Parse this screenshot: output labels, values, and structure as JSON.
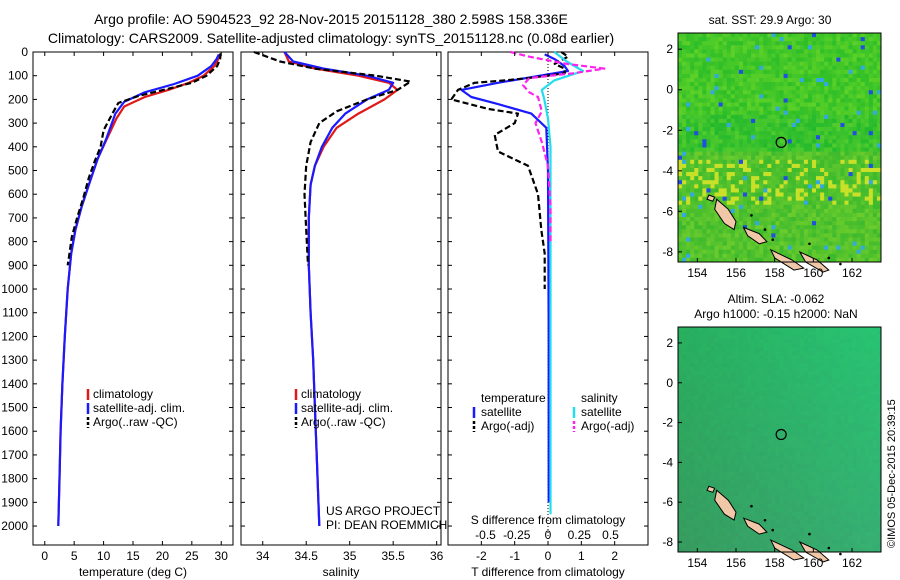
{
  "header": {
    "title_line1": "Argo profile: AO 5904523_92 28-Nov-2015 20151128_380 2.598S 158.336E",
    "title_line2": "Climatology: CARS2009. Satellite-adjusted climatology: synTS_20151128.nc (0.08d earlier)"
  },
  "colors": {
    "climatology": "#e01818",
    "satellite": "#1a1aff",
    "argo": "#000000",
    "sal_satellite": "#22ddee",
    "sal_argo": "#ff22ee"
  },
  "depth_axis": {
    "ticks": [
      0,
      100,
      200,
      300,
      400,
      500,
      600,
      700,
      800,
      900,
      1000,
      1100,
      1200,
      1300,
      1400,
      1500,
      1600,
      1700,
      1800,
      1900,
      2000
    ],
    "range": [
      0,
      2000
    ]
  },
  "chart_data": [
    {
      "type": "line",
      "name": "temperature-profile",
      "xlabel": "temperature (deg C)",
      "ylabel": "",
      "xlim": [
        -2,
        32
      ],
      "ylim": [
        0,
        2080
      ],
      "xticks": [
        0,
        5,
        10,
        15,
        20,
        25,
        30
      ],
      "legend": [
        "climatology",
        "satellite-adj. clim.",
        "Argo(..raw -QC)"
      ],
      "series": [
        {
          "name": "climatology",
          "color_key": "climatology",
          "dash": "",
          "points": [
            [
              29.8,
              10
            ],
            [
              29.5,
              30
            ],
            [
              28.8,
              60
            ],
            [
              27.0,
              100
            ],
            [
              24.5,
              130
            ],
            [
              21.0,
              160
            ],
            [
              17.0,
              190
            ],
            [
              13.5,
              230
            ],
            [
              12.2,
              280
            ],
            [
              10.5,
              370
            ],
            [
              9.0,
              450
            ],
            [
              7.5,
              560
            ],
            [
              6.3,
              650
            ],
            [
              5.2,
              750
            ],
            [
              4.5,
              850
            ],
            [
              3.9,
              1000
            ],
            [
              3.4,
              1200
            ],
            [
              3.0,
              1400
            ],
            [
              2.7,
              1600
            ],
            [
              2.5,
              1800
            ],
            [
              2.3,
              2000
            ]
          ]
        },
        {
          "name": "satellite-adj. clim.",
          "color_key": "satellite",
          "dash": "",
          "points": [
            [
              29.6,
              10
            ],
            [
              29.2,
              30
            ],
            [
              28.3,
              60
            ],
            [
              26.0,
              100
            ],
            [
              22.0,
              135
            ],
            [
              17.0,
              170
            ],
            [
              13.5,
              210
            ],
            [
              12.0,
              260
            ],
            [
              10.4,
              370
            ],
            [
              9.0,
              450
            ],
            [
              7.5,
              560
            ],
            [
              6.3,
              650
            ],
            [
              5.2,
              750
            ],
            [
              4.5,
              850
            ],
            [
              3.9,
              1000
            ],
            [
              3.4,
              1200
            ],
            [
              3.0,
              1400
            ],
            [
              2.7,
              1600
            ],
            [
              2.5,
              1800
            ],
            [
              2.3,
              2000
            ]
          ]
        },
        {
          "name": "Argo(..raw -QC)",
          "color_key": "argo",
          "dash": "6,3",
          "points": [
            [
              29.9,
              5
            ],
            [
              29.8,
              30
            ],
            [
              29.3,
              60
            ],
            [
              27.5,
              100
            ],
            [
              25.0,
              130
            ],
            [
              21.0,
              155
            ],
            [
              16.0,
              185
            ],
            [
              12.5,
              215
            ],
            [
              11.5,
              260
            ],
            [
              10.0,
              330
            ],
            [
              9.5,
              400
            ],
            [
              8.5,
              460
            ],
            [
              7.5,
              530
            ],
            [
              6.5,
              620
            ],
            [
              5.5,
              700
            ],
            [
              4.6,
              780
            ],
            [
              4.2,
              850
            ],
            [
              3.9,
              900
            ]
          ]
        }
      ]
    },
    {
      "type": "line",
      "name": "salinity-profile",
      "xlabel": "salinity",
      "ylabel": "",
      "xlim": [
        33.75,
        36.05
      ],
      "ylim": [
        0,
        2080
      ],
      "xticks": [
        34,
        34.5,
        35,
        35.5,
        36
      ],
      "legend": [
        "climatology",
        "satellite-adj. clim.",
        "Argo(..raw -QC)"
      ],
      "annotations": [
        "US ARGO PROJECT",
        "PI: DEAN ROEMMICH"
      ],
      "series": [
        {
          "name": "climatology",
          "color_key": "climatology",
          "dash": "",
          "points": [
            [
              34.25,
              0
            ],
            [
              34.3,
              40
            ],
            [
              34.6,
              70
            ],
            [
              35.1,
              100
            ],
            [
              35.45,
              130
            ],
            [
              35.55,
              160
            ],
            [
              35.4,
              200
            ],
            [
              35.1,
              260
            ],
            [
              34.85,
              320
            ],
            [
              34.7,
              400
            ],
            [
              34.6,
              480
            ],
            [
              34.55,
              560
            ],
            [
              34.53,
              700
            ],
            [
              34.53,
              900
            ],
            [
              34.55,
              1100
            ],
            [
              34.58,
              1300
            ],
            [
              34.6,
              1500
            ],
            [
              34.62,
              1700
            ],
            [
              34.65,
              2000
            ]
          ]
        },
        {
          "name": "satellite-adj. clim.",
          "color_key": "satellite",
          "dash": "",
          "points": [
            [
              34.25,
              0
            ],
            [
              34.35,
              40
            ],
            [
              34.7,
              70
            ],
            [
              35.2,
              100
            ],
            [
              35.5,
              130
            ],
            [
              35.45,
              160
            ],
            [
              35.2,
              200
            ],
            [
              34.95,
              260
            ],
            [
              34.8,
              320
            ],
            [
              34.68,
              400
            ],
            [
              34.6,
              480
            ],
            [
              34.55,
              560
            ],
            [
              34.53,
              700
            ],
            [
              34.53,
              900
            ],
            [
              34.55,
              1100
            ],
            [
              34.58,
              1300
            ],
            [
              34.6,
              1500
            ],
            [
              34.62,
              1700
            ],
            [
              34.65,
              2000
            ]
          ]
        },
        {
          "name": "Argo(..raw -QC)",
          "color_key": "argo",
          "dash": "6,3",
          "points": [
            [
              33.9,
              0
            ],
            [
              34.2,
              40
            ],
            [
              34.6,
              70
            ],
            [
              35.3,
              100
            ],
            [
              35.7,
              125
            ],
            [
              35.55,
              160
            ],
            [
              35.2,
              200
            ],
            [
              34.85,
              250
            ],
            [
              34.65,
              300
            ],
            [
              34.55,
              380
            ],
            [
              34.5,
              480
            ],
            [
              34.48,
              600
            ],
            [
              34.5,
              750
            ],
            [
              34.52,
              900
            ]
          ]
        }
      ]
    },
    {
      "type": "line",
      "name": "difference-profile",
      "xlabel": "T difference from climatology",
      "x2label": "S difference from climatology",
      "xlim": [
        -3,
        3
      ],
      "x2lim": [
        -0.8,
        0.8
      ],
      "ylim": [
        0,
        2080
      ],
      "xticks": [
        -2,
        -1,
        0,
        1,
        2
      ],
      "x2ticks": [
        -0.5,
        -0.25,
        0,
        0.25,
        0.5
      ],
      "x2ticklabels": [
        "-0.5",
        "-0.25",
        "0",
        "0.25",
        "0.5"
      ],
      "legend_temperature": {
        "title": "temperature",
        "items": [
          "satellite",
          "Argo(-adj)"
        ]
      },
      "legend_salinity": {
        "title": "salinity",
        "items": [
          "satellite",
          "Argo(-adj)"
        ]
      },
      "series": [
        {
          "name": "T satellite",
          "axis": "T",
          "color_key": "satellite",
          "dash": "",
          "points": [
            [
              -0.1,
              10
            ],
            [
              0.2,
              30
            ],
            [
              0.5,
              60
            ],
            [
              0.6,
              80
            ],
            [
              -1.5,
              130
            ],
            [
              -2.6,
              160
            ],
            [
              -2.3,
              190
            ],
            [
              -1.5,
              220
            ],
            [
              -0.5,
              260
            ],
            [
              -0.05,
              320
            ],
            [
              0,
              500
            ],
            [
              0.01,
              800
            ],
            [
              0.02,
              1200
            ],
            [
              0.02,
              1600
            ],
            [
              0.02,
              1900
            ]
          ]
        },
        {
          "name": "T Argo(-adj)",
          "axis": "T",
          "color_key": "argo",
          "dash": "6,3",
          "points": [
            [
              0.4,
              0
            ],
            [
              0.6,
              20
            ],
            [
              0.2,
              50
            ],
            [
              0.5,
              70
            ],
            [
              0.5,
              90
            ],
            [
              -0.6,
              110
            ],
            [
              -1.3,
              120
            ],
            [
              -2.2,
              130
            ],
            [
              -2.7,
              160
            ],
            [
              -2.9,
              200
            ],
            [
              -1.8,
              240
            ],
            [
              -0.9,
              260
            ],
            [
              -1.0,
              300
            ],
            [
              -1.6,
              350
            ],
            [
              -1.5,
              420
            ],
            [
              -0.6,
              480
            ],
            [
              -0.3,
              600
            ],
            [
              -0.2,
              750
            ],
            [
              -0.1,
              850
            ],
            [
              -0.1,
              1000
            ]
          ]
        },
        {
          "name": "S satellite",
          "axis": "S",
          "color_key": "sal_satellite",
          "dash": "",
          "points": [
            [
              0.05,
              0
            ],
            [
              0.15,
              40
            ],
            [
              0.28,
              80
            ],
            [
              0.05,
              120
            ],
            [
              -0.05,
              160
            ],
            [
              -0.03,
              200
            ],
            [
              0.0,
              280
            ],
            [
              0.02,
              400
            ],
            [
              0.02,
              700
            ],
            [
              0.02,
              1000
            ],
            [
              0.02,
              1400
            ],
            [
              0.02,
              1800
            ],
            [
              0.02,
              1950
            ]
          ]
        },
        {
          "name": "S Argo(-adj)",
          "axis": "S",
          "color_key": "sal_argo",
          "dash": "6,3",
          "points": [
            [
              -0.3,
              0
            ],
            [
              -0.15,
              20
            ],
            [
              0.15,
              50
            ],
            [
              0.45,
              70
            ],
            [
              0.2,
              90
            ],
            [
              -0.15,
              110
            ],
            [
              -0.2,
              140
            ],
            [
              -0.15,
              170
            ],
            [
              -0.08,
              190
            ],
            [
              -0.05,
              250
            ],
            [
              -0.1,
              300
            ],
            [
              -0.05,
              380
            ],
            [
              0,
              480
            ],
            [
              0.02,
              650
            ],
            [
              0.02,
              800
            ]
          ]
        }
      ]
    },
    {
      "type": "heatmap",
      "name": "sst-map",
      "title": "sat. SST: 29.9 Argo: 30",
      "xlim": [
        153,
        163.5
      ],
      "ylim": [
        -8.5,
        2.8
      ],
      "xticks": [
        154,
        156,
        158,
        160,
        162
      ],
      "yticks": [
        2,
        0,
        -2,
        -4,
        -6,
        -8
      ],
      "marker": {
        "lon": 158.336,
        "lat": -2.598
      }
    },
    {
      "type": "heatmap",
      "name": "sla-map",
      "title_line1": "Altim. SLA: -0.062",
      "title_line2": "Argo h1000: -0.15 h2000: NaN",
      "xlim": [
        153,
        163.5
      ],
      "ylim": [
        -8.5,
        2.8
      ],
      "xticks": [
        154,
        156,
        158,
        160,
        162
      ],
      "yticks": [
        2,
        0,
        -2,
        -4,
        -6,
        -8
      ],
      "marker": {
        "lon": 158.336,
        "lat": -2.598
      }
    }
  ],
  "credit": "©IMOS 05-Dec-2015 20:39:15"
}
